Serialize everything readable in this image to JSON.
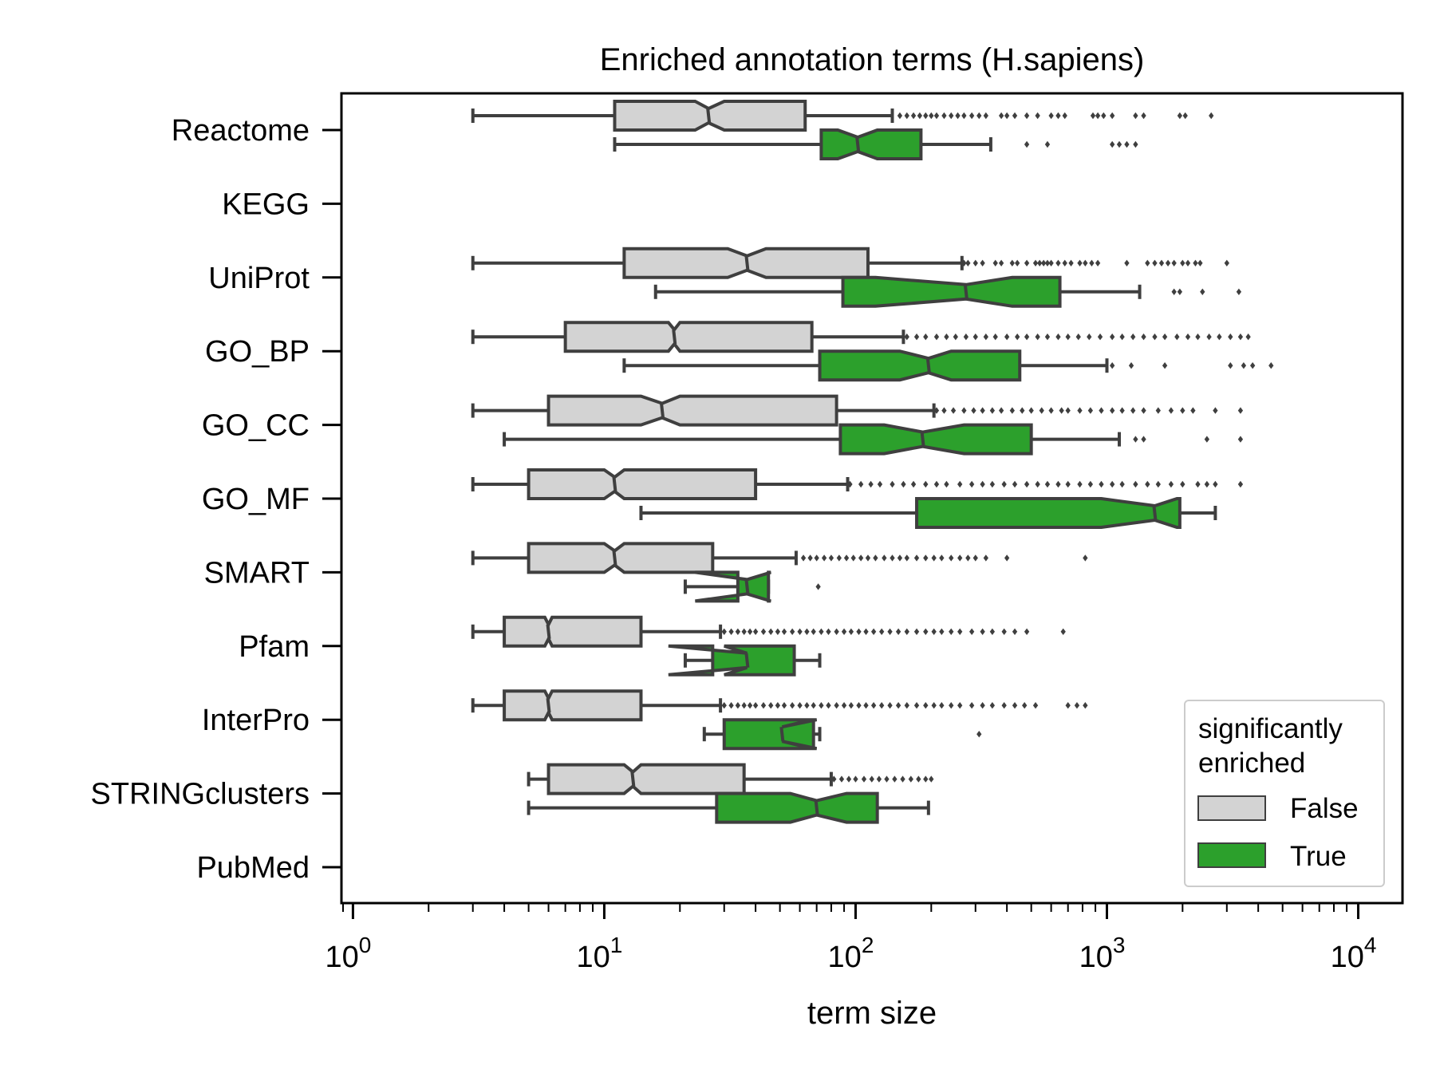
{
  "chart_data": {
    "type": "boxplot",
    "title": "Enriched annotation terms (H.sapiens)",
    "xlabel": "term size",
    "ylabel": "",
    "x_scale": "log",
    "xlim": [
      0.9,
      15000
    ],
    "x_ticks": [
      {
        "value": 1,
        "base": "10",
        "exp": "0"
      },
      {
        "value": 10,
        "base": "10",
        "exp": "1"
      },
      {
        "value": 100,
        "base": "10",
        "exp": "2"
      },
      {
        "value": 1000,
        "base": "10",
        "exp": "3"
      },
      {
        "value": 10000,
        "base": "10",
        "exp": "4"
      }
    ],
    "categories": [
      "Reactome",
      "KEGG",
      "UniProt",
      "GO_BP",
      "GO_CC",
      "GO_MF",
      "SMART",
      "Pfam",
      "InterPro",
      "STRINGclusters",
      "PubMed"
    ],
    "legend": {
      "title_lines": [
        "significantly",
        "enriched"
      ],
      "position": "lower-right",
      "entries": [
        {
          "label": "False",
          "color": "#d3d3d3"
        },
        {
          "label": "True",
          "color": "#2ca02c"
        }
      ]
    },
    "colors": {
      "False": "#d3d3d3",
      "True": "#2ca02c",
      "edge": "#3f3f3f"
    },
    "series": [
      {
        "key": "False",
        "boxes": [
          {
            "category": "Reactome",
            "whislo": 3,
            "q1": 11,
            "med": 26,
            "q3": 63,
            "whishi": 140,
            "notch": [
              23,
              30
            ],
            "fliers": [
              150,
              160,
              170,
              180,
              190,
              200,
              210,
              225,
              240,
              255,
              270,
              290,
              310,
              330,
              380,
              400,
              430,
              480,
              530,
              600,
              640,
              680,
              880,
              920,
              970,
              1050,
              1300,
              1400,
              1950,
              2050,
              2600
            ]
          },
          {
            "category": "UniProt",
            "whislo": 3,
            "q1": 12,
            "med": 37,
            "q3": 112,
            "whishi": 265,
            "notch": [
              31,
              44
            ],
            "fliers": [
              270,
              280,
              300,
              320,
              360,
              380,
              420,
              440,
              480,
              520,
              540,
              560,
              580,
              600,
              640,
              680,
              720,
              780,
              820,
              870,
              920,
              1200,
              1450,
              1550,
              1650,
              1750,
              1850,
              2000,
              2100,
              2250,
              2350,
              3000
            ]
          },
          {
            "category": "GO_BP",
            "whislo": 3,
            "q1": 7,
            "med": 19,
            "q3": 67,
            "whishi": 155,
            "notch": [
              18,
              20
            ],
            "fliers": [
              160,
              175,
              190,
              210,
              230,
              250,
              275,
              300,
              330,
              360,
              400,
              440,
              480,
              530,
              580,
              640,
              700,
              770,
              850,
              940,
              1050,
              1150,
              1270,
              1400,
              1550,
              1700,
              1900,
              2100,
              2300,
              2550,
              2800,
              3100,
              3400,
              3650
            ]
          },
          {
            "category": "GO_CC",
            "whislo": 3,
            "q1": 6,
            "med": 17,
            "q3": 84,
            "whishi": 205,
            "notch": [
              14,
              20
            ],
            "fliers": [
              210,
              225,
              245,
              270,
              295,
              320,
              350,
              380,
              420,
              460,
              500,
              550,
              600,
              660,
              700,
              780,
              860,
              950,
              1050,
              1150,
              1270,
              1400,
              1600,
              1800,
              2000,
              2200,
              2700,
              3400
            ]
          },
          {
            "category": "GO_MF",
            "whislo": 3,
            "q1": 5,
            "med": 11,
            "q3": 40,
            "whishi": 93,
            "notch": [
              10,
              12
            ],
            "fliers": [
              95,
              105,
              115,
              125,
              140,
              155,
              170,
              190,
              210,
              230,
              260,
              290,
              320,
              350,
              390,
              430,
              480,
              530,
              580,
              640,
              700,
              780,
              860,
              950,
              1050,
              1150,
              1300,
              1450,
              1600,
              1800,
              2000,
              2300,
              2500,
              2700,
              3400
            ]
          },
          {
            "category": "SMART",
            "whislo": 3,
            "q1": 5,
            "med": 11,
            "q3": 27,
            "whishi": 58,
            "notch": [
              10,
              12
            ],
            "fliers": [
              62,
              66,
              70,
              75,
              80,
              86,
              92,
              98,
              105,
              112,
              120,
              130,
              140,
              150,
              160,
              175,
              190,
              205,
              220,
              240,
              260,
              280,
              300,
              330,
              400,
              820
            ]
          },
          {
            "category": "Pfam",
            "whislo": 3,
            "q1": 4,
            "med": 6,
            "q3": 14,
            "whishi": 29,
            "notch": [
              5.8,
              6.2
            ],
            "fliers": [
              30,
              32,
              34,
              36,
              38,
              40,
              43,
              46,
              49,
              52,
              56,
              60,
              64,
              68,
              73,
              78,
              84,
              90,
              96,
              103,
              110,
              118,
              127,
              137,
              148,
              160,
              175,
              190,
              205,
              220,
              240,
              260,
              290,
              320,
              350,
              390,
              430,
              480,
              670
            ]
          },
          {
            "category": "InterPro",
            "whislo": 3,
            "q1": 4,
            "med": 6,
            "q3": 14,
            "whishi": 29,
            "notch": [
              5.8,
              6.2
            ],
            "fliers": [
              30,
              32,
              34,
              36,
              38,
              40,
              43,
              46,
              49,
              52,
              56,
              60,
              64,
              68,
              73,
              78,
              84,
              90,
              96,
              103,
              110,
              118,
              127,
              137,
              148,
              160,
              175,
              190,
              205,
              220,
              240,
              260,
              290,
              320,
              350,
              390,
              430,
              470,
              520,
              700,
              760,
              820
            ]
          },
          {
            "category": "STRINGclusters",
            "whislo": 5,
            "q1": 6,
            "med": 13,
            "q3": 36,
            "whishi": 80,
            "notch": [
              12,
              14
            ],
            "fliers": [
              82,
              88,
              94,
              100,
              108,
              116,
              124,
              133,
              143,
              154,
              166,
              178,
              190,
              200
            ]
          }
        ]
      },
      {
        "key": "True",
        "boxes": [
          {
            "category": "Reactome",
            "whislo": 11,
            "q1": 73,
            "med": 102,
            "q3": 182,
            "whishi": 345,
            "notch": [
              85,
              122
            ],
            "fliers": [
              480,
              580,
              1050,
              1120,
              1200,
              1300
            ]
          },
          {
            "category": "UniProt",
            "whislo": 16,
            "q1": 89,
            "med": 275,
            "q3": 650,
            "whishi": 1350,
            "notch": [
              120,
              420
            ],
            "fliers": [
              1850,
              1950,
              2400,
              3350
            ]
          },
          {
            "category": "GO_BP",
            "whislo": 12,
            "q1": 72,
            "med": 195,
            "q3": 450,
            "whishi": 1000,
            "notch": [
              150,
              240
            ],
            "fliers": [
              1050,
              1250,
              1700,
              3100,
              3500,
              3800,
              4500
            ]
          },
          {
            "category": "GO_CC",
            "whislo": 4,
            "q1": 87,
            "med": 185,
            "q3": 500,
            "whishi": 1120,
            "notch": [
              130,
              270
            ],
            "fliers": [
              1300,
              1400,
              2500,
              3400
            ]
          },
          {
            "category": "GO_MF",
            "whislo": 14,
            "q1": 175,
            "med": 1550,
            "q3": 1950,
            "whishi": 2700,
            "notch": [
              950,
              1900
            ],
            "fliers": []
          },
          {
            "category": "SMART",
            "whislo": 21,
            "q1": 34,
            "med": 37,
            "q3": 45,
            "whishi": 45,
            "notch": [
              23,
              46
            ],
            "fliers": [
              71
            ]
          },
          {
            "category": "Pfam",
            "whislo": 21,
            "q1": 27,
            "med": 37,
            "q3": 57,
            "whishi": 72,
            "notch": [
              18,
              30
            ],
            "fliers": []
          },
          {
            "category": "InterPro",
            "whislo": 25,
            "q1": 30,
            "med": 51,
            "q3": 68,
            "whishi": 72,
            "notch": [
              67,
              70
            ],
            "fliers": [
              310
            ]
          },
          {
            "category": "STRINGclusters",
            "whislo": 5,
            "q1": 28,
            "med": 70,
            "q3": 122,
            "whishi": 195,
            "notch": [
              55,
              92
            ],
            "fliers": []
          }
        ]
      }
    ]
  }
}
